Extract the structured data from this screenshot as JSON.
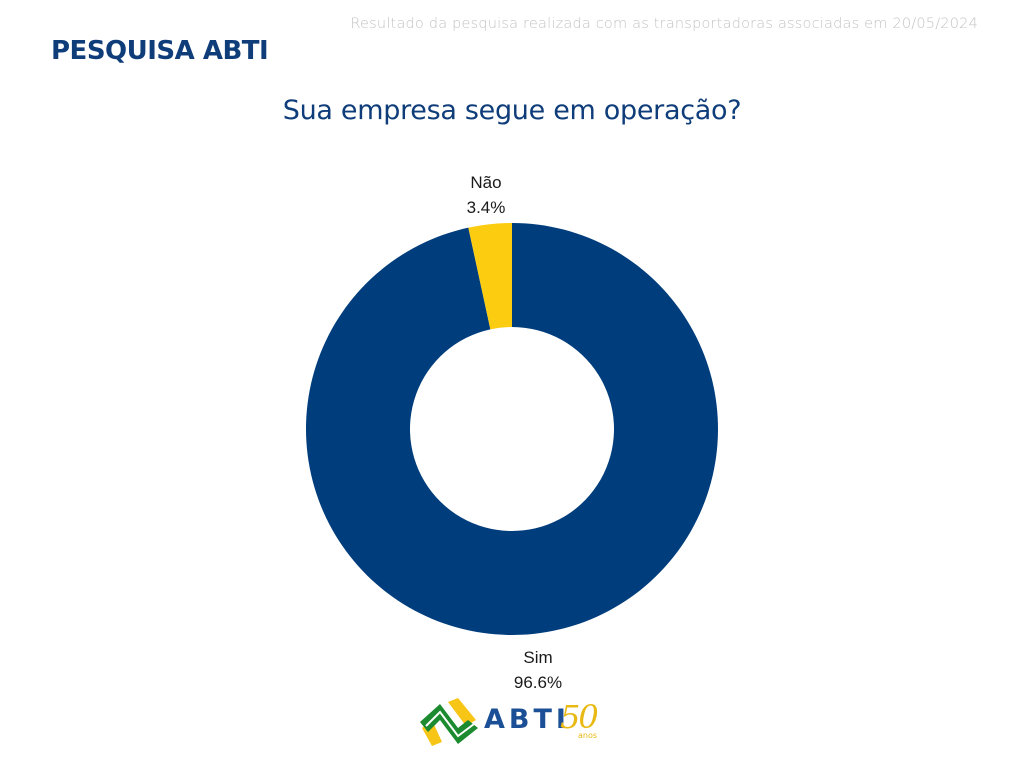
{
  "header": {
    "brand_title": "PESQUISA ABTI",
    "note": "Resultado da pesquisa realizada com as transportadoras associadas em 20/05/2024"
  },
  "chart_data": {
    "type": "pie",
    "variant": "donut",
    "title": "Sua empresa segue em operação?",
    "categories": [
      "Sim",
      "Não"
    ],
    "values": [
      96.6,
      3.4
    ],
    "unit": "%",
    "colors": [
      "#003d7c",
      "#fbcc10"
    ],
    "labels": [
      {
        "name": "Sim",
        "value_text": "96.6%"
      },
      {
        "name": "Não",
        "value_text": "3.4%"
      }
    ],
    "legend": "none",
    "start_angle": "12 o'clock, clockwise"
  },
  "footer": {
    "logo_text": "ABTI",
    "logo_anniversary": "50",
    "logo_anniversary_suffix": "anos"
  }
}
